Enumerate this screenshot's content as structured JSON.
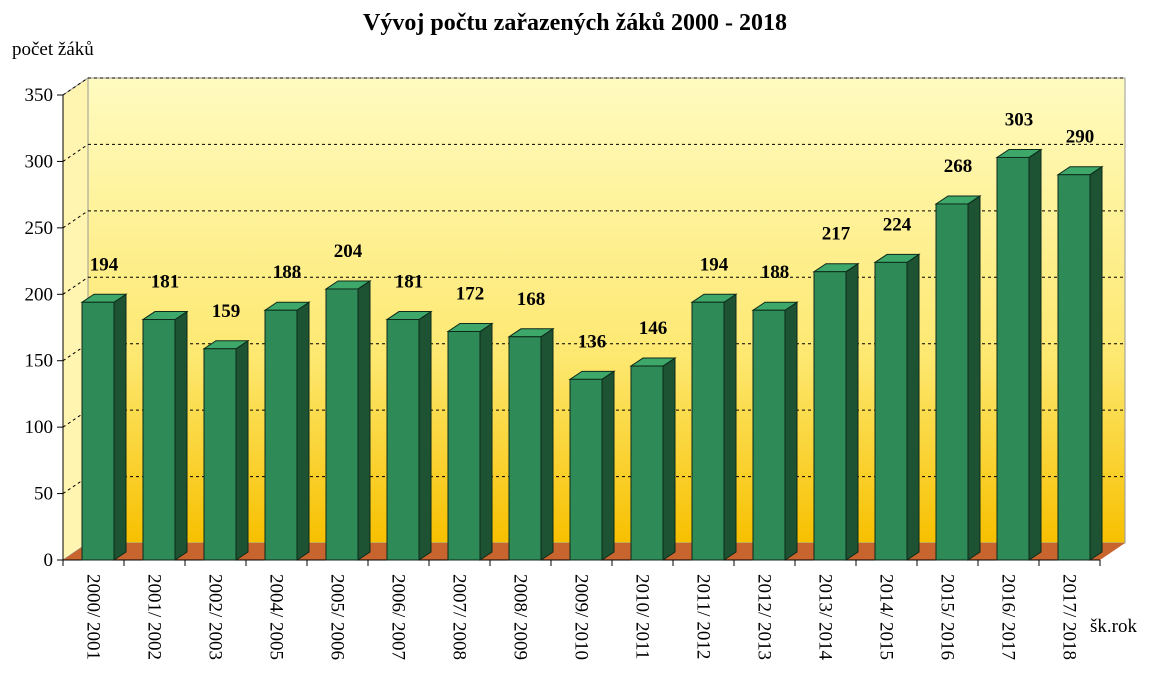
{
  "chart_data": {
    "type": "bar",
    "title": "Vývoj počtu zařazených žáků 2000 - 2018",
    "y_label": "počet žáků",
    "x_label": "šk.rok",
    "categories": [
      "2000/ 2001",
      "2001/ 2002",
      "2002/ 2003",
      "2004/ 2005",
      "2005/ 2006",
      "2006/ 2007",
      "2007/ 2008",
      "2008/ 2009",
      "2009/ 2010",
      "2010/ 2011",
      "2011/ 2012",
      "2012/ 2013",
      "2013/ 2014",
      "2014/ 2015",
      "2015/ 2016",
      "2016/ 2017",
      "2017/ 2018"
    ],
    "values": [
      194,
      181,
      159,
      188,
      204,
      181,
      172,
      168,
      136,
      146,
      194,
      188,
      217,
      224,
      268,
      303,
      290
    ],
    "color": "#2e8b57",
    "ylim": [
      0,
      350
    ],
    "yticks": [
      0,
      50,
      100,
      150,
      200,
      250,
      300,
      350
    ],
    "grid": true
  }
}
